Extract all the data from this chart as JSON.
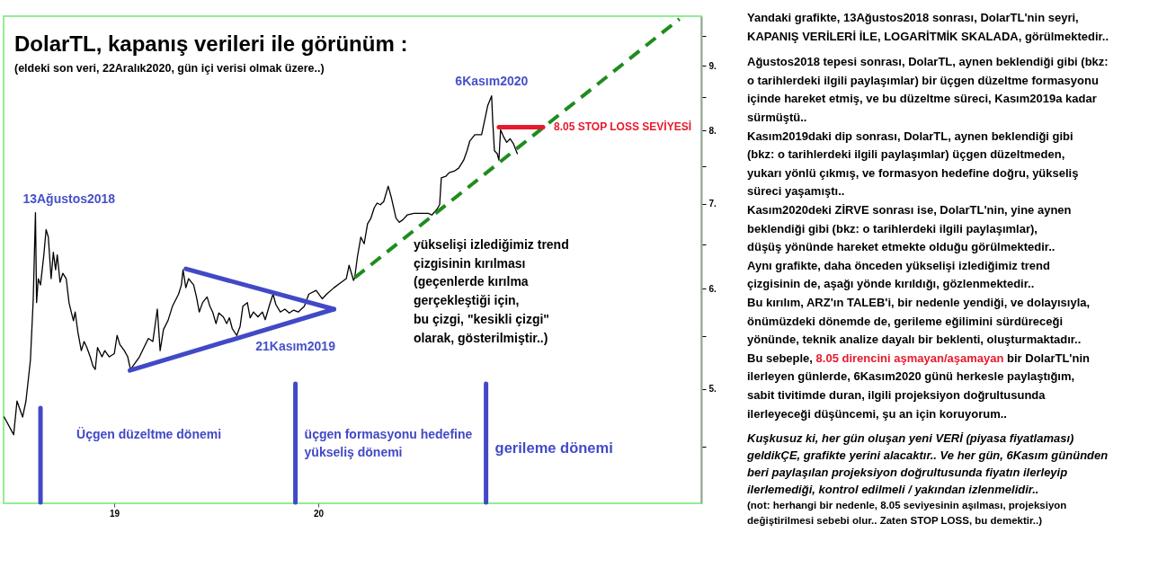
{
  "chart_data": [
    {
      "type": "line",
      "title": "DolarTL, kapanış verileri ile görünüm :",
      "subtitle": "(eldeki son veri, 22Aralık2020, gün içi verisi olmak üzere..)",
      "log": true,
      "xlim": [
        "2018-06-17",
        "2021-11-16"
      ],
      "ylim": [
        4.06,
        9.85
      ],
      "xticks": [
        {
          "value": "2019-01-01",
          "label": "19"
        },
        {
          "value": "2020-01-01",
          "label": "20"
        }
      ],
      "yticks": [
        {
          "value": 4.5,
          "label": null
        },
        {
          "value": 5,
          "label": "5."
        },
        {
          "value": 5.5,
          "label": null
        },
        {
          "value": 6,
          "label": "6."
        },
        {
          "value": 6.5,
          "label": null
        },
        {
          "value": 7,
          "label": "7."
        },
        {
          "value": 7.5,
          "label": null
        },
        {
          "value": 8,
          "label": "8."
        },
        {
          "value": 8.5,
          "label": null
        },
        {
          "value": 9,
          "label": "9."
        },
        {
          "value": 9.5,
          "label": null
        }
      ],
      "series": [
        {
          "color": "#000000",
          "x": [
            "2018-06-18",
            "2018-07-05",
            "2018-07-11",
            "2018-07-21",
            "2018-07-27",
            "2018-08-04",
            "2018-08-09",
            "2018-08-13",
            "2018-08-15",
            "2018-08-18",
            "2018-08-22",
            "2018-08-28",
            "2018-09-01",
            "2018-09-05",
            "2018-09-10",
            "2018-09-14",
            "2018-09-18",
            "2018-09-21",
            "2018-09-26",
            "2018-10-01",
            "2018-10-07",
            "2018-10-12",
            "2018-10-16",
            "2018-10-20",
            "2018-10-23",
            "2018-10-28",
            "2018-11-03",
            "2018-11-08",
            "2018-11-13",
            "2018-11-19",
            "2018-11-24",
            "2018-11-28",
            "2018-12-02",
            "2018-12-10",
            "2018-12-15",
            "2018-12-23",
            "2019-01-01",
            "2019-01-06",
            "2019-01-11",
            "2019-01-19",
            "2019-01-25",
            "2019-01-30",
            "2019-02-15",
            "2019-03-03",
            "2019-03-11",
            "2019-03-19",
            "2019-03-24",
            "2019-03-30",
            "2019-04-07",
            "2019-04-15",
            "2019-04-26",
            "2019-05-01",
            "2019-05-04",
            "2019-05-09",
            "2019-05-14",
            "2019-05-23",
            "2019-05-28",
            "2019-06-02",
            "2019-06-08",
            "2019-06-16",
            "2019-06-21",
            "2019-06-26",
            "2019-07-02",
            "2019-07-07",
            "2019-07-15",
            "2019-07-21",
            "2019-07-26",
            "2019-07-31",
            "2019-08-08",
            "2019-08-14",
            "2019-08-19",
            "2019-08-27",
            "2019-09-01",
            "2019-09-07",
            "2019-09-15",
            "2019-09-23",
            "2019-09-28",
            "2019-10-06",
            "2019-10-12",
            "2019-10-17",
            "2019-10-25",
            "2019-11-02",
            "2019-11-10",
            "2019-11-18",
            "2019-11-26",
            "2019-12-07",
            "2019-12-15",
            "2019-12-28",
            "2020-01-08",
            "2020-01-16",
            "2020-01-29",
            "2020-02-09",
            "2020-02-20",
            "2020-02-25",
            "2020-03-04",
            "2020-03-06",
            "2020-03-11",
            "2020-03-17",
            "2020-03-23",
            "2020-03-29",
            "2020-04-04",
            "2020-04-10",
            "2020-04-15",
            "2020-04-21",
            "2020-04-27",
            "2020-05-05",
            "2020-05-11",
            "2020-05-19",
            "2020-05-25",
            "2020-05-31",
            "2020-06-08",
            "2020-06-20",
            "2020-07-16",
            "2020-07-22",
            "2020-07-31",
            "2020-08-05",
            "2020-08-08",
            "2020-08-16",
            "2020-08-22",
            "2020-08-31",
            "2020-09-08",
            "2020-09-17",
            "2020-09-23",
            "2020-09-28",
            "2020-10-07",
            "2020-10-19",
            "2020-10-24",
            "2020-10-30",
            "2020-11-06",
            "2020-11-08",
            "2020-11-11",
            "2020-11-16",
            "2020-11-19",
            "2020-11-22",
            "2020-11-28",
            "2020-12-03",
            "2020-12-09",
            "2020-12-15",
            "2020-12-22"
          ],
          "values": [
            4.75,
            4.6,
            4.89,
            4.75,
            4.89,
            5.27,
            5.88,
            6.89,
            5.85,
            6.11,
            6.04,
            6.38,
            6.68,
            6.59,
            6.11,
            6.41,
            6.21,
            6.38,
            6.07,
            6.17,
            6.11,
            5.85,
            5.75,
            5.66,
            5.75,
            5.54,
            5.36,
            5.45,
            5.39,
            5.3,
            5.21,
            5.18,
            5.39,
            5.3,
            5.36,
            5.3,
            5.33,
            5.51,
            5.42,
            5.36,
            5.3,
            5.18,
            5.3,
            5.48,
            5.45,
            5.78,
            5.36,
            5.57,
            5.66,
            5.81,
            5.94,
            6.04,
            6.21,
            6.01,
            6.11,
            6.04,
            5.91,
            5.75,
            5.85,
            5.91,
            5.81,
            5.75,
            5.63,
            5.74,
            5.7,
            5.63,
            5.69,
            5.58,
            5.51,
            5.6,
            5.81,
            5.85,
            5.69,
            5.75,
            5.7,
            5.75,
            5.67,
            5.83,
            5.94,
            5.83,
            5.75,
            5.78,
            5.74,
            5.77,
            5.75,
            5.81,
            5.94,
            5.98,
            5.89,
            5.94,
            6.01,
            6.06,
            6.11,
            6.26,
            6.09,
            6.12,
            6.36,
            6.59,
            6.51,
            6.75,
            6.82,
            6.95,
            7.01,
            6.99,
            7.03,
            7.23,
            7.07,
            6.82,
            6.77,
            6.8,
            6.86,
            6.88,
            6.88,
            6.86,
            6.93,
            6.99,
            7.34,
            7.36,
            7.41,
            7.43,
            7.47,
            7.58,
            7.71,
            7.85,
            7.94,
            7.94,
            8.13,
            8.37,
            8.52,
            8.13,
            7.71,
            7.67,
            7.58,
            8.01,
            7.9,
            7.83,
            7.88,
            7.81,
            7.67
          ]
        },
        {
          "type": "line",
          "color": "#4249c6",
          "x": [
            "2019-05-09",
            "2020-01-29"
          ],
          "values": [
            6.22,
            5.78
          ]
        },
        {
          "type": "line",
          "color": "#4249c6",
          "x": [
            "2019-01-29",
            "2020-01-29"
          ],
          "values": [
            5.17,
            5.78
          ]
        },
        {
          "type": "line",
          "color": "#1e8c1e",
          "line_style": "dashed",
          "x": [
            "2020-03-06",
            "2021-10-08"
          ],
          "values": [
            6.12,
            9.8
          ]
        },
        {
          "type": "line",
          "color": "#e8192c",
          "x": [
            "2020-11-19",
            "2021-02-06"
          ],
          "values": [
            8.05,
            8.05
          ]
        }
      ],
      "ref_lines": [
        {
          "axis": "x",
          "value": "2018-08-22",
          "label": "Üçgen düzeltme dönemi",
          "color": "#4249c6"
        },
        {
          "axis": "x",
          "value": "2019-11-21",
          "label": "üçgen formasyonu hedefine\nyükseliş dönemi",
          "color": "#4249c6"
        },
        {
          "axis": "x",
          "value": "2020-10-27",
          "label": "gerileme dönemi",
          "color": "#4249c6"
        }
      ],
      "annotations": [
        {
          "text": "13Ağustos2018",
          "x": "2018-08-13",
          "y": 6.89
        },
        {
          "text": "6Kasım2020",
          "x": "2020-11-06",
          "y": 8.52
        },
        {
          "text": "21Kasım2019",
          "x": "2019-11-21",
          "y": 5.77
        },
        {
          "text": "8.05 STOP LOSS SEVİYESİ",
          "x": "2021-02-06",
          "y": 8.05
        },
        "yükselişi izlediğimiz trend\nçizgisinin kırılması\n(geçenlerde kırılma\ngerçekleştiği için,\nbu çizgi, \"kesikli çizgi\"\nolarak, gösterilmiştir..)"
      ]
    },
    {
      "type": "other",
      "annotations": [
        "Yandaki grafikte, 13Ağustos2018 sonrası, DolarTL'nin seyri,",
        "KAPANIŞ VERİLERİ İLE, LOGARİTMİK SKALADA, görülmektedir..",
        "Ağustos2018 tepesi sonrası, DolarTL, aynen beklendiği gibi (bkz:",
        "o tarihlerdeki ilgili paylaşımlar) bir üçgen düzeltme formasyonu",
        "içinde hareket etmiş, ve bu düzeltme süreci, Kasım2019a kadar",
        "sürmüştü..",
        "Kasım2019daki dip sonrası, DolarTL, aynen beklendiği gibi",
        "(bkz: o tarihlerdeki ilgili paylaşımlar) üçgen düzeltmeden,",
        "yukarı yönlü çıkmış, ve formasyon hedefine doğru, yükseliş",
        "süreci yaşamıştı..",
        "Kasım2020deki ZİRVE sonrası ise, DolarTL'nin, yine aynen",
        "beklendiği gibi (bkz: o tarihlerdeki ilgili paylaşımlar),",
        "düşüş yönünde hareket etmekte olduğu görülmektedir..",
        "Aynı grafikte, daha önceden yükselişi izlediğimiz trend",
        "çizgisinin de, aşağı yönde kırıldığı, gözlenmektedir..",
        "Bu kırılım, ARZ'ın TALEB'i, bir nedenle yendiği, ve dolayısıyla,",
        "önümüzdeki dönemde de, gerileme eğilimini sürdüreceği",
        "yönünde, teknik analize dayalı bir beklenti, oluşturmaktadır..",
        "Bu sebeple,",
        "8.05 direncini aşmayan/aşamayan",
        "bir DolarTL'nin",
        "ilerleyen günlerde, 6Kasım2020 günü herkesle paylaştığım,",
        "sabit tivitimde duran, ilgili projeksiyon doğrultusunda",
        "ilerleyeceği düşüncemi, şu an için koruyorum..",
        "Kuşkusuz ki, her gün oluşan yeni VERİ (piyasa fiyatlaması)",
        "geldikÇE, grafikte yerini alacaktır.. Ve her gün, 6Kasım gününden",
        "beri paylaşılan projeksiyon doğrultusunda fiyatın ilerleyip",
        "ilerlemediği, kontrol edilmeli / yakından izlenmelidir..",
        "(not: herhangi bir nedenle, 8.05 seviyesinin aşılması, projeksiyon",
        "değiştirilmesi sebebi olur.. Zaten STOP LOSS, bu demektir..)"
      ]
    }
  ]
}
